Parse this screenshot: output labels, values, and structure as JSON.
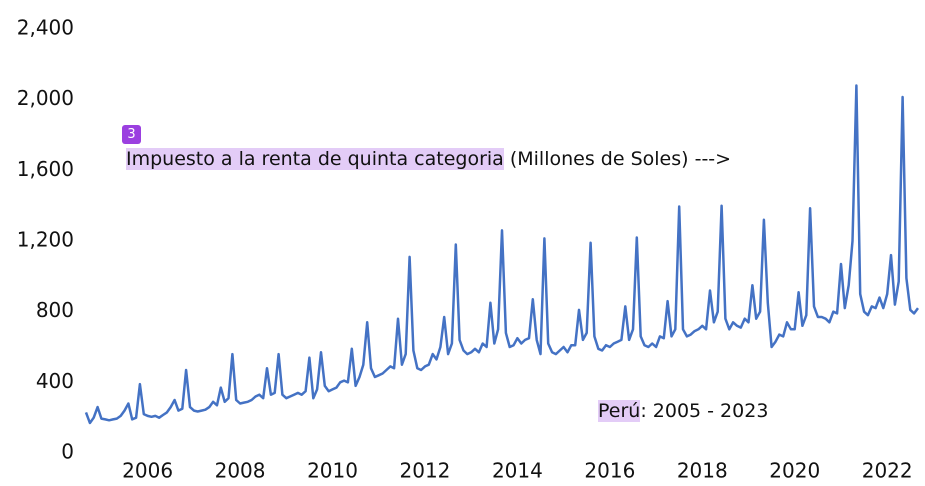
{
  "chart_data": {
    "type": "line",
    "categories": [
      null,
      null,
      null,
      null,
      null,
      null,
      null,
      null,
      null,
      null,
      null,
      null,
      null,
      null,
      null,
      null,
      "2006",
      null,
      null,
      null,
      null,
      null,
      null,
      null,
      null,
      null,
      null,
      null,
      null,
      null,
      null,
      null,
      null,
      null,
      null,
      null,
      null,
      null,
      null,
      null,
      "2008",
      null,
      null,
      null,
      null,
      null,
      null,
      null,
      null,
      null,
      null,
      null,
      null,
      null,
      null,
      null,
      null,
      null,
      null,
      null,
      null,
      null,
      null,
      null,
      "2010",
      null,
      null,
      null,
      null,
      null,
      null,
      null,
      null,
      null,
      null,
      null,
      null,
      null,
      null,
      null,
      null,
      null,
      null,
      null,
      null,
      null,
      null,
      null,
      "2012",
      null,
      null,
      null,
      null,
      null,
      null,
      null,
      null,
      null,
      null,
      null,
      null,
      null,
      null,
      null,
      null,
      null,
      null,
      null,
      null,
      null,
      null,
      null,
      "2014",
      null,
      null,
      null,
      null,
      null,
      null,
      null,
      null,
      null,
      null,
      null,
      null,
      null,
      null,
      null,
      null,
      null,
      null,
      null,
      null,
      null,
      null,
      null,
      "2016",
      null,
      null,
      null,
      null,
      null,
      null,
      null,
      null,
      null,
      null,
      null,
      null,
      null,
      null,
      null,
      null,
      null,
      null,
      null,
      null,
      null,
      null,
      null,
      "2018",
      null,
      null,
      null,
      null,
      null,
      null,
      null,
      null,
      null,
      null,
      null,
      null,
      null,
      null,
      null,
      null,
      null,
      null,
      null,
      null,
      null,
      null,
      null,
      "2020",
      null,
      null,
      null,
      null,
      null,
      null,
      null,
      null,
      null,
      null,
      null,
      null,
      null,
      null,
      null,
      null,
      null,
      null,
      null,
      null,
      null,
      null,
      null,
      "2022",
      null,
      null,
      null,
      null,
      null,
      null,
      null,
      null
    ],
    "series": [
      {
        "color": "#4472c4",
        "values": [
          230,
          170,
          200,
          260,
          195,
          190,
          185,
          190,
          195,
          210,
          240,
          280,
          190,
          200,
          390,
          220,
          210,
          205,
          210,
          200,
          215,
          230,
          260,
          300,
          240,
          250,
          470,
          260,
          240,
          235,
          240,
          245,
          260,
          290,
          270,
          370,
          290,
          310,
          560,
          300,
          280,
          285,
          290,
          300,
          320,
          330,
          310,
          480,
          330,
          340,
          560,
          330,
          310,
          320,
          330,
          340,
          330,
          350,
          540,
          310,
          360,
          570,
          380,
          350,
          360,
          370,
          400,
          410,
          400,
          590,
          380,
          430,
          500,
          740,
          480,
          430,
          440,
          450,
          470,
          490,
          480,
          760,
          500,
          560,
          1110,
          580,
          480,
          470,
          490,
          500,
          560,
          530,
          600,
          770,
          560,
          620,
          1180,
          640,
          580,
          560,
          570,
          590,
          570,
          620,
          600,
          850,
          620,
          700,
          1260,
          680,
          600,
          610,
          650,
          620,
          640,
          650,
          870,
          640,
          560,
          1215,
          620,
          570,
          560,
          580,
          600,
          570,
          610,
          610,
          810,
          640,
          680,
          1190,
          660,
          590,
          580,
          610,
          600,
          620,
          630,
          640,
          830,
          640,
          700,
          1220,
          660,
          610,
          600,
          620,
          600,
          660,
          650,
          860,
          660,
          700,
          1395,
          700,
          660,
          670,
          690,
          700,
          720,
          700,
          920,
          740,
          800,
          1400,
          760,
          700,
          740,
          720,
          710,
          760,
          740,
          950,
          760,
          800,
          1320,
          850,
          600,
          630,
          670,
          660,
          740,
          700,
          700,
          910,
          720,
          780,
          1385,
          830,
          770,
          770,
          760,
          740,
          800,
          790,
          1070,
          820,
          950,
          1200,
          2080,
          900,
          800,
          780,
          830,
          820,
          880,
          820,
          900,
          1120,
          840,
          970,
          2015,
          990,
          810,
          790,
          820
        ]
      }
    ],
    "ylim": [
      0,
      2400
    ],
    "yticks": [
      0,
      400,
      800,
      {
        "value": 1200,
        "label": "1,200"
      },
      {
        "value": 1600,
        "label": "1,600"
      },
      {
        "value": 2000,
        "label": "2,000"
      },
      {
        "value": 2400,
        "label": "2,400"
      }
    ],
    "annotations": [
      [
        "Impuesto a la renta de quinta categoria",
        " (Millones de Soles) --->"
      ],
      [
        "Perú",
        ": 2005 - 2023"
      ]
    ],
    "badge": "3"
  }
}
